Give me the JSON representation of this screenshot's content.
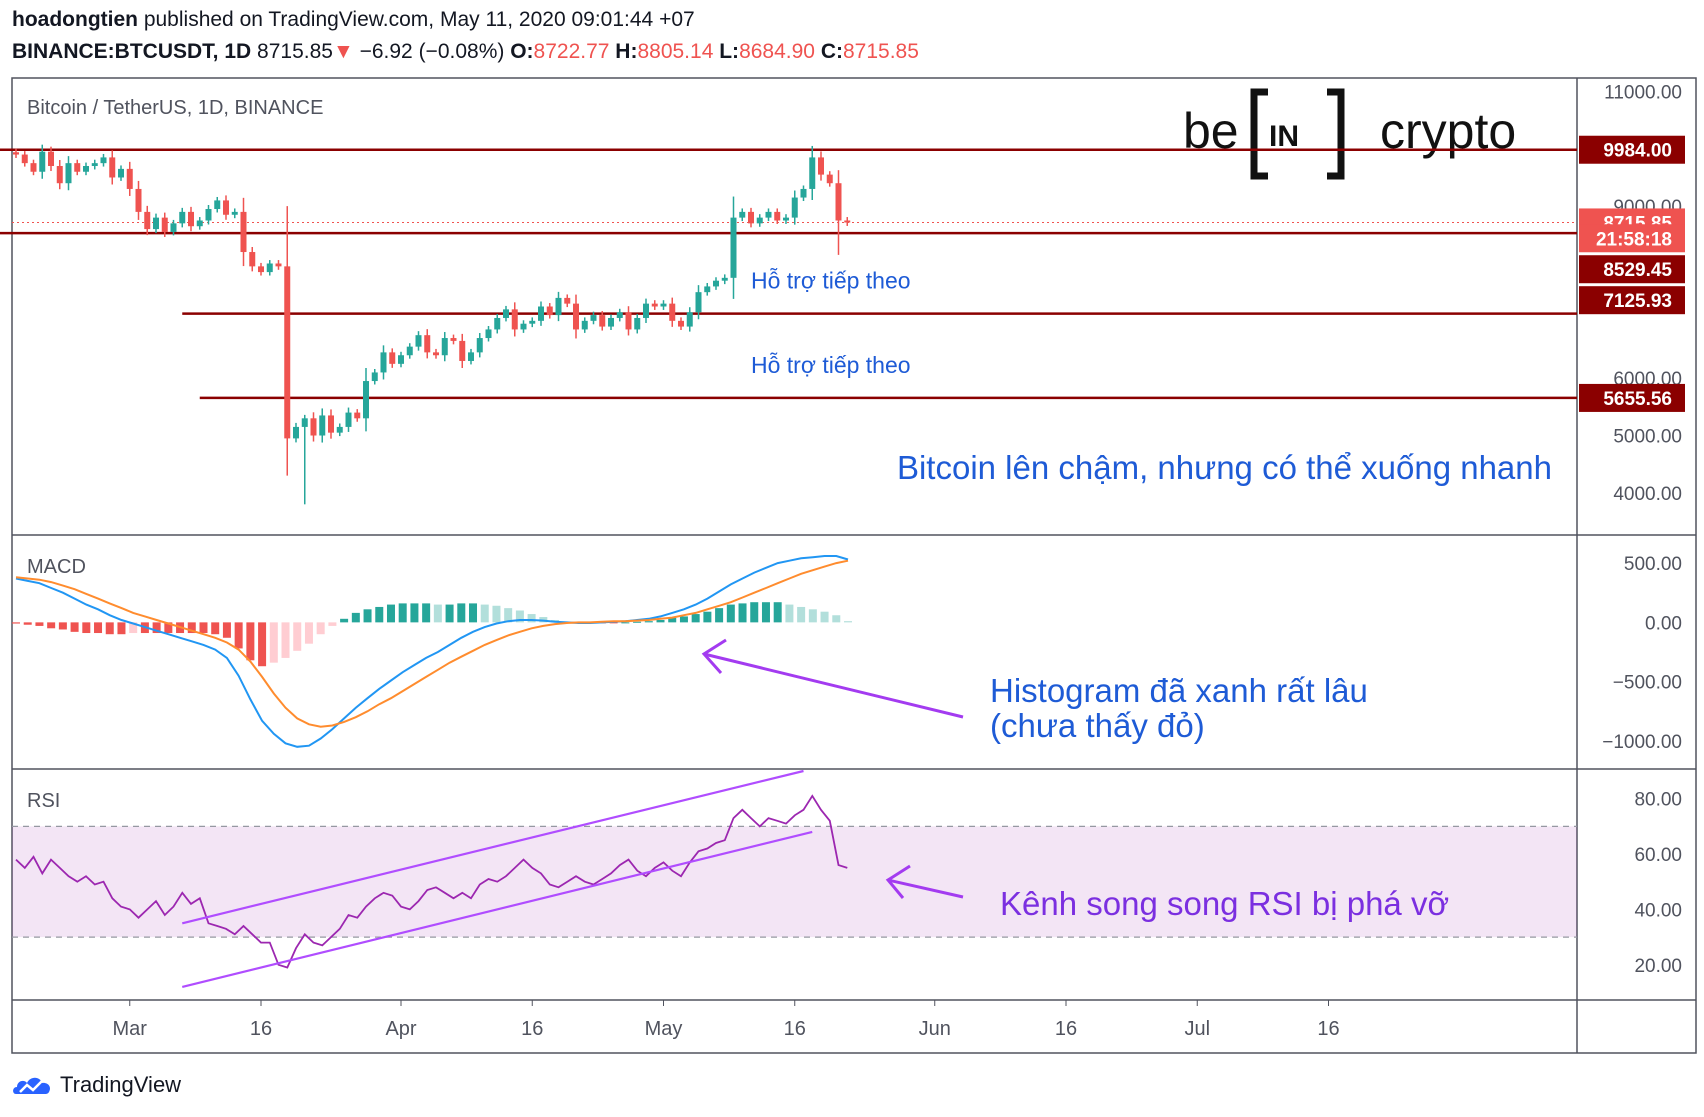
{
  "header": {
    "author": "hoadongtien",
    "published_text": "published on TradingView.com, May 11, 2020 09:01:44 +07",
    "symbol": "BINANCE:BTCUSDT, 1D",
    "last": "8715.85",
    "change_arrow": "▼",
    "change": "−6.92 (−0.08%)",
    "o_label": "O:",
    "o": "8722.77",
    "h_label": "H:",
    "h": "8805.14",
    "l_label": "L:",
    "l": "8684.90",
    "c_label": "C:",
    "c": "8715.85"
  },
  "footer": {
    "brand": "TradingView",
    "icon": "tradingview-cloud-icon"
  },
  "colors": {
    "up": "#26a69a",
    "down": "#ef5350",
    "level": "#8b0000",
    "macd": "#2196f3",
    "signal": "#ff8c2e",
    "rsi": "#9c27b0",
    "annotation": "#1e5bd6",
    "rsi_annotation": "#7b2fe0"
  },
  "chart_data": [
    {
      "type": "candlestick",
      "title": "Bitcoin / TetherUS, 1D, BINANCE",
      "watermark": "beincrypto",
      "ylim": [
        3300,
        11200
      ],
      "y_ticks": [
        {
          "v": 11000,
          "label": "11000.00"
        },
        {
          "v": 9000,
          "label": "9000.00"
        },
        {
          "v": 6000,
          "label": "6000.00"
        },
        {
          "v": 5000,
          "label": "5000.00"
        },
        {
          "v": 4000,
          "label": "4000.00"
        }
      ],
      "price_tags": [
        {
          "v": 9984,
          "label": "9984.00"
        },
        {
          "v": 8715.85,
          "label": "8715.85"
        },
        {
          "v": 8440,
          "label": "21:58:18"
        },
        {
          "v": 7900,
          "label": "8529.45"
        },
        {
          "v": 7360,
          "label": "7125.93"
        },
        {
          "v": 5655.56,
          "label": "5655.56"
        }
      ],
      "levels": [
        {
          "y": 9984,
          "from_day": -2
        },
        {
          "y": 8530,
          "from_day": -2
        },
        {
          "y": 7126,
          "from_day": 19
        },
        {
          "y": 5656,
          "from_day": 21
        }
      ],
      "annotations": [
        {
          "text": "Hỗ trợ tiếp theo",
          "day": 84,
          "v": 7560
        },
        {
          "text": "Hỗ trợ tiếp theo",
          "day": 84,
          "v": 6090
        },
        {
          "text": "Bitcoin lên chậm, nhưng có thể xuống nhanh",
          "day": 100,
          "v": 4240
        }
      ],
      "x_ticks": [
        {
          "day": 13,
          "label": "Mar"
        },
        {
          "day": 28,
          "label": "16"
        },
        {
          "day": 44,
          "label": "Apr"
        },
        {
          "day": 59,
          "label": "16"
        },
        {
          "day": 74,
          "label": "May"
        },
        {
          "day": 89,
          "label": "16"
        },
        {
          "day": 105,
          "label": "Jun"
        },
        {
          "day": 120,
          "label": "16"
        },
        {
          "day": 135,
          "label": "Jul"
        },
        {
          "day": 150,
          "label": "16"
        }
      ],
      "closes": [
        9900,
        9750,
        9600,
        9950,
        9700,
        9400,
        9750,
        9600,
        9700,
        9750,
        9850,
        9500,
        9650,
        9300,
        8900,
        8600,
        8800,
        8550,
        8700,
        8900,
        8650,
        8750,
        8950,
        9100,
        8850,
        8900,
        8200,
        7950,
        7850,
        8000,
        7950,
        4950,
        5150,
        5300,
        5000,
        5350,
        5050,
        5150,
        5400,
        5300,
        5950,
        6100,
        6450,
        6250,
        6400,
        6550,
        6750,
        6450,
        6400,
        6700,
        6650,
        6300,
        6450,
        6700,
        6850,
        7050,
        7200,
        6850,
        6950,
        7000,
        7250,
        7100,
        7400,
        7300,
        6850,
        7000,
        7100,
        6900,
        7050,
        7150,
        6850,
        7050,
        7300,
        7250,
        7300,
        7000,
        6900,
        7150,
        7500,
        7600,
        7700,
        7750,
        8800,
        8900,
        8700,
        8800,
        8900,
        8750,
        8800,
        9150,
        9300,
        9850,
        9550,
        9400,
        8750,
        8715
      ],
      "ohlc_hint": "open = previous close; high/low extend beyond body"
    },
    {
      "type": "line",
      "title": "MACD",
      "ylim": [
        -1220,
        720
      ],
      "y_ticks": [
        {
          "v": 500,
          "label": "500.00"
        },
        {
          "v": 0,
          "label": "0.00"
        },
        {
          "v": -500,
          "label": "−500.00"
        },
        {
          "v": -1000,
          "label": "−1000.00"
        }
      ],
      "series": [
        {
          "name": "MACD",
          "values": [
            370,
            350,
            330,
            290,
            250,
            200,
            150,
            110,
            60,
            20,
            -10,
            -40,
            -70,
            -100,
            -130,
            -160,
            -190,
            -230,
            -300,
            -450,
            -650,
            -830,
            -940,
            -1020,
            -1050,
            -1040,
            -980,
            -900,
            -810,
            -720,
            -640,
            -560,
            -490,
            -420,
            -360,
            -300,
            -250,
            -190,
            -130,
            -80,
            -40,
            -10,
            10,
            20,
            20,
            15,
            5,
            0,
            -5,
            -5,
            0,
            5,
            10,
            20,
            30,
            50,
            80,
            110,
            150,
            200,
            260,
            320,
            370,
            420,
            460,
            500,
            520,
            540,
            550,
            560,
            560,
            530
          ]
        },
        {
          "name": "Signal",
          "values": [
            380,
            370,
            360,
            340,
            310,
            280,
            240,
            200,
            160,
            120,
            80,
            50,
            20,
            -10,
            -40,
            -70,
            -100,
            -130,
            -170,
            -230,
            -330,
            -460,
            -600,
            -720,
            -810,
            -860,
            -880,
            -870,
            -840,
            -800,
            -750,
            -690,
            -640,
            -580,
            -520,
            -460,
            -400,
            -340,
            -290,
            -240,
            -190,
            -150,
            -110,
            -80,
            -50,
            -30,
            -15,
            -5,
            0,
            0,
            5,
            10,
            10,
            15,
            20,
            30,
            40,
            60,
            80,
            110,
            140,
            170,
            210,
            250,
            290,
            330,
            370,
            410,
            440,
            470,
            500,
            520
          ]
        },
        {
          "name": "Histogram",
          "values": [
            -10,
            -20,
            -30,
            -50,
            -60,
            -80,
            -90,
            -90,
            -100,
            -100,
            -90,
            -90,
            -90,
            -90,
            -90,
            -90,
            -90,
            -100,
            -130,
            -220,
            -320,
            -370,
            -340,
            -300,
            -240,
            -180,
            -100,
            -30,
            30,
            80,
            110,
            130,
            150,
            160,
            160,
            160,
            150,
            150,
            160,
            160,
            150,
            140,
            120,
            100,
            70,
            45,
            20,
            5,
            -5,
            -5,
            -5,
            -5,
            0,
            5,
            10,
            20,
            40,
            50,
            70,
            90,
            120,
            150,
            160,
            170,
            170,
            170,
            150,
            130,
            110,
            90,
            60,
            10
          ]
        }
      ]
    },
    {
      "type": "line",
      "title": "RSI",
      "ylim": [
        8,
        90
      ],
      "band": [
        30,
        70
      ],
      "y_ticks": [
        {
          "v": 80,
          "label": "80.00"
        },
        {
          "v": 60,
          "label": "60.00"
        },
        {
          "v": 40,
          "label": "40.00"
        },
        {
          "v": 20,
          "label": "20.00"
        }
      ],
      "series": [
        {
          "name": "RSI",
          "values": [
            58,
            55,
            59,
            53,
            58,
            55,
            52,
            50,
            52,
            49,
            50,
            44,
            41,
            40,
            37,
            40,
            43,
            38,
            41,
            46,
            42,
            44,
            35,
            34,
            33,
            31,
            34,
            31,
            28,
            28,
            20,
            19,
            26,
            31,
            28,
            27,
            30,
            33,
            38,
            37,
            41,
            44,
            46,
            45,
            41,
            40,
            43,
            47,
            48,
            46,
            44,
            46,
            44,
            49,
            51,
            50,
            52,
            55,
            58,
            55,
            53,
            49,
            48,
            50,
            52,
            50,
            49,
            51,
            53,
            56,
            58,
            54,
            52,
            55,
            57,
            54,
            52,
            57,
            61,
            62,
            64,
            65,
            73,
            76,
            73,
            70,
            73,
            72,
            71,
            74,
            76,
            81,
            76,
            72,
            56,
            55
          ]
        }
      ],
      "channel": [
        {
          "name": "upper",
          "from": {
            "day": 19,
            "v": 35
          },
          "to": {
            "day": 90,
            "v": 90
          }
        },
        {
          "name": "lower",
          "from": {
            "day": 19,
            "v": 12
          },
          "to": {
            "day": 91,
            "v": 68
          }
        }
      ],
      "annotations": [
        {
          "text": "Kênh song song RSI bị phá vỡ",
          "day": 100,
          "v": 38
        }
      ]
    }
  ],
  "macd_annotation": {
    "line1": "Histogram đã xanh rất lâu",
    "line2": "(chưa thấy đỏ)"
  }
}
